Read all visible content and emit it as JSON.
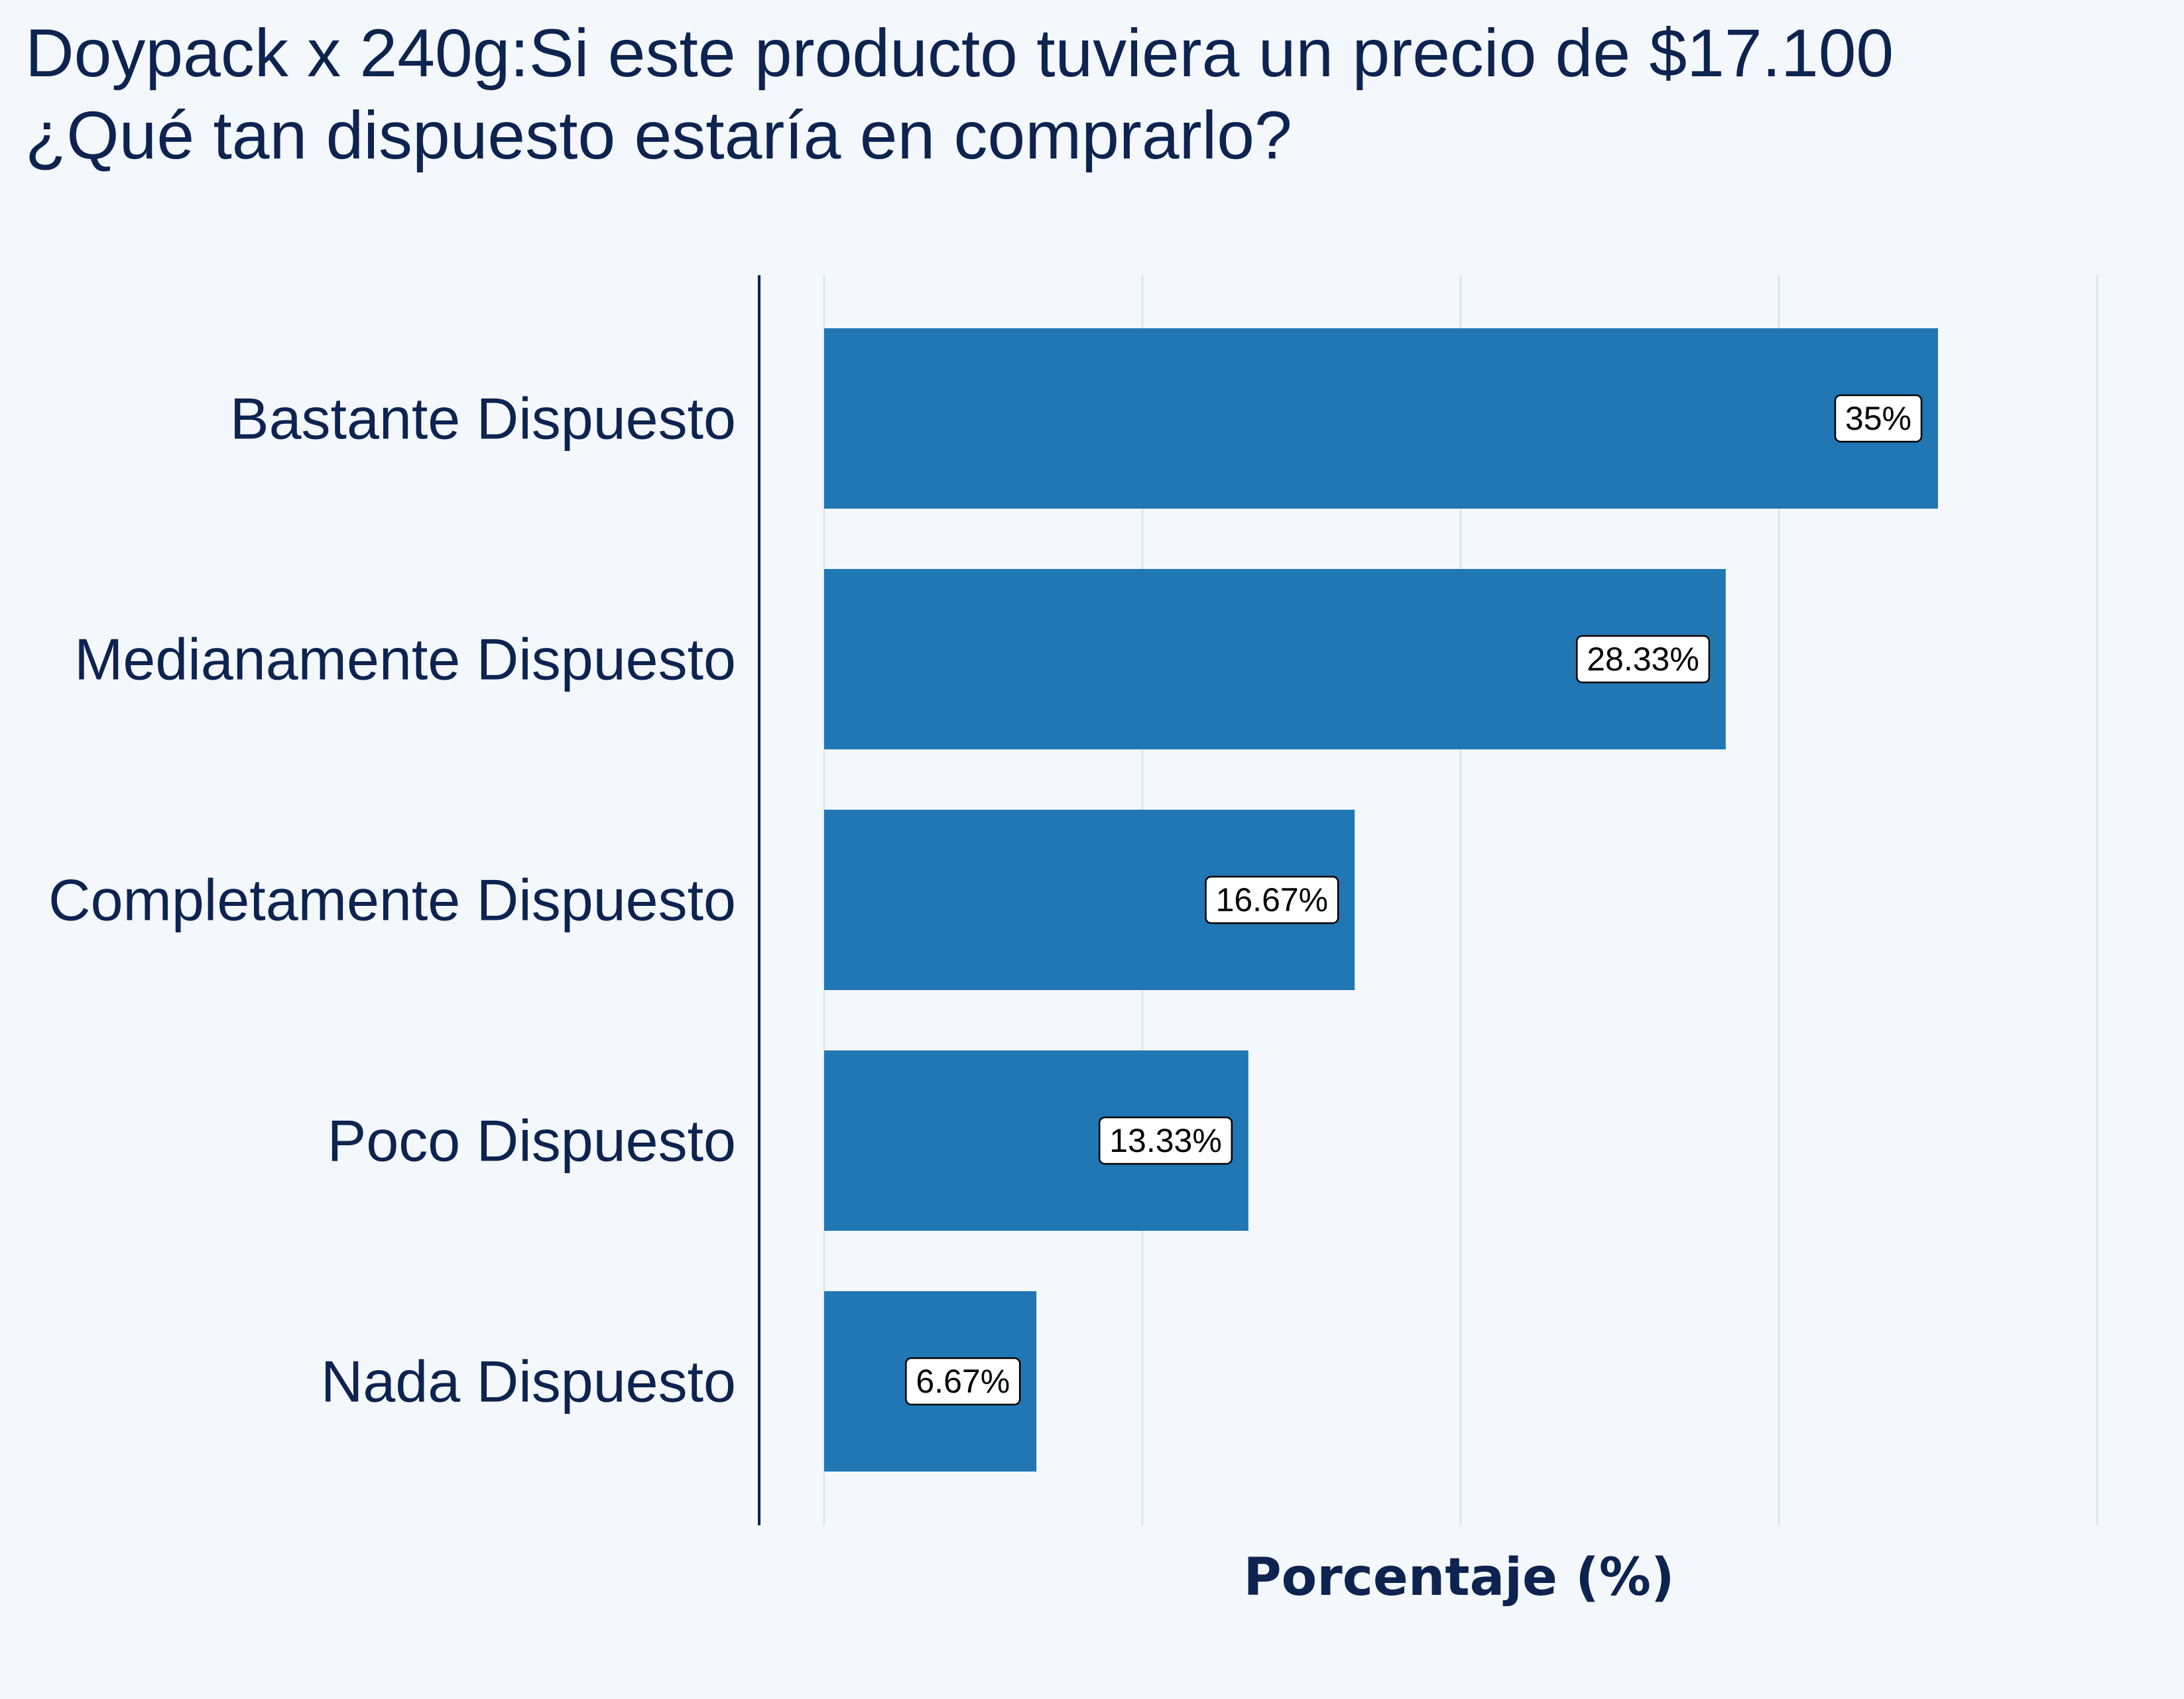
{
  "chart_data": {
    "type": "bar",
    "orientation": "horizontal",
    "title": [
      "Doypack x 240g:Si este producto tuviera un precio de $17.100",
      "¿Qué tan dispuesto estaría en comprarlo?"
    ],
    "xlabel": "Porcentaje (%)",
    "ylabel": "",
    "categories": [
      "Bastante Dispuesto",
      "Medianamente Dispuesto",
      "Completamente Dispuesto",
      "Poco Dispuesto",
      "Nada Dispuesto"
    ],
    "values": [
      35,
      28.33,
      16.67,
      13.33,
      6.67
    ],
    "data_labels": [
      "35%",
      "28.33%",
      "16.67%",
      "13.33%",
      "6.67%"
    ],
    "xlim": [
      -2,
      40
    ],
    "grid_x": [
      0,
      10,
      20,
      30,
      40
    ],
    "x_ticklabels_shown": false,
    "grid": true,
    "legend": "none"
  },
  "colors": {
    "background": "#f4f8fc",
    "bar": "#2077b4",
    "text": "#0d2350",
    "grid": "#dde3ea",
    "axis": "#0d2350",
    "label_box": "#ffffff",
    "label_border": "#000000"
  }
}
